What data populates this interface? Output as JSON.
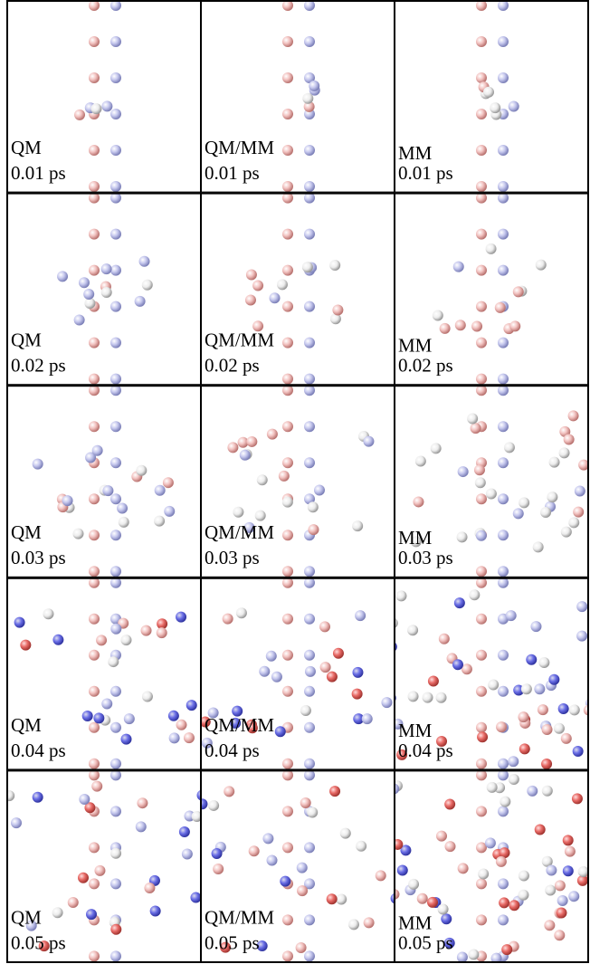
{
  "panels": [
    {
      "method": "QM",
      "time": "0.01 ps"
    },
    {
      "method": "QM/MM",
      "time": "0.01 ps"
    },
    {
      "method": "MM",
      "time": "0.01 ps"
    },
    {
      "method": "QM",
      "time": "0.02 ps"
    },
    {
      "method": "QM/MM",
      "time": "0.02 ps"
    },
    {
      "method": "MM",
      "time": "0.02 ps"
    },
    {
      "method": "QM",
      "time": "0.03 ps"
    },
    {
      "method": "QM/MM",
      "time": "0.03 ps"
    },
    {
      "method": "MM",
      "time": "0.03 ps"
    },
    {
      "method": "QM",
      "time": "0.04 ps"
    },
    {
      "method": "QM/MM",
      "time": "0.04 ps"
    },
    {
      "method": "MM",
      "time": "0.04 ps"
    },
    {
      "method": "QM",
      "time": "0.05 ps"
    },
    {
      "method": "QM/MM",
      "time": "0.05 ps"
    },
    {
      "method": "MM",
      "time": "0.05 ps"
    }
  ]
}
